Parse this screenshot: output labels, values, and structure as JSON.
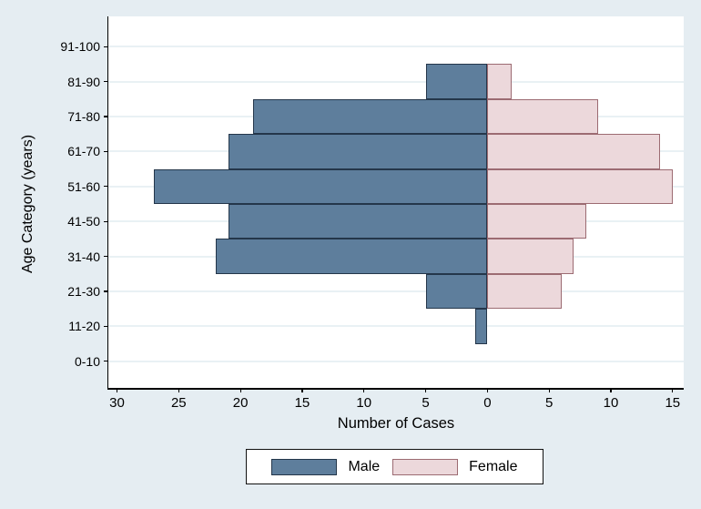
{
  "chart_data": {
    "type": "bar",
    "subtype": "population-pyramid",
    "orientation": "horizontal",
    "title": "",
    "xlabel": "Number of Cases",
    "ylabel": "Age Category (years)",
    "categories": [
      "91-100",
      "81-90",
      "71-80",
      "61-70",
      "51-60",
      "41-50",
      "31-40",
      "21-30",
      "11-20",
      "0-10"
    ],
    "series": [
      {
        "name": "Male",
        "side": "left",
        "values": [
          0,
          5,
          19,
          21,
          27,
          21,
          22,
          5,
          1,
          0
        ],
        "fill": "#5e7e9c",
        "border": "#24364a"
      },
      {
        "name": "Female",
        "side": "right",
        "values": [
          0,
          2,
          9,
          14,
          15,
          8,
          7,
          6,
          0,
          0
        ],
        "fill": "#ecd8db",
        "border": "#9c6b72"
      }
    ],
    "x_ticks": [
      {
        "value": -30,
        "label": "30"
      },
      {
        "value": -25,
        "label": "25"
      },
      {
        "value": -20,
        "label": "20"
      },
      {
        "value": -15,
        "label": "15"
      },
      {
        "value": -10,
        "label": "10"
      },
      {
        "value": -5,
        "label": "5"
      },
      {
        "value": 0,
        "label": "0"
      },
      {
        "value": 5,
        "label": "5"
      },
      {
        "value": 10,
        "label": "10"
      },
      {
        "value": 15,
        "label": "15"
      }
    ],
    "xlim": [
      -30.7,
      15.9
    ],
    "grid": "horizontal",
    "legend_position": "bottom"
  },
  "legend": {
    "items": [
      {
        "label": "Male"
      },
      {
        "label": "Female"
      }
    ]
  },
  "colors": {
    "background": "#e5edf2",
    "plot_background": "#ffffff",
    "grid_line": "#e9f1f4",
    "axis_line": "#000000",
    "text": "#000000"
  }
}
